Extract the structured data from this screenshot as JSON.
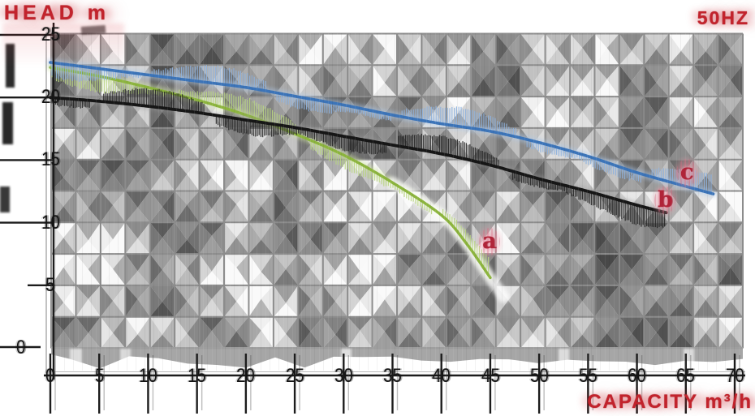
{
  "header": {
    "y_axis_title": "HEAD m",
    "frequency_label": "50HZ"
  },
  "footer": {
    "x_axis_title": "CAPACITY m³/h"
  },
  "colors": {
    "accent_red": "#c2232c",
    "curve_a_green": "#8cb43e",
    "curve_b_black": "#161616",
    "curve_c_blue": "#3c74b8",
    "grid_line": "#8c8c8c",
    "label_red": "#b02438"
  },
  "chart_data": {
    "type": "line",
    "title": "Pump performance curves 50HZ",
    "xlabel": "CAPACITY m³/h",
    "ylabel": "HEAD m",
    "xlim": [
      0,
      70
    ],
    "ylim": [
      0,
      25
    ],
    "x_ticks": [
      0,
      5,
      10,
      15,
      20,
      25,
      30,
      35,
      40,
      45,
      50,
      55,
      60,
      65,
      70
    ],
    "y_ticks": [
      25,
      20,
      15,
      10,
      5,
      0
    ],
    "grid": {
      "on": true,
      "step_x": 2.5,
      "step_y": 2.5
    },
    "legend_position": "none",
    "series": [
      {
        "name": "a",
        "color": "#8cb43e",
        "hatch_color": "#b9d582",
        "glow_color": "#d3e5a6",
        "points": [
          [
            0,
            22.4
          ],
          [
            5,
            21.7
          ],
          [
            10,
            20.8
          ],
          [
            15,
            19.8
          ],
          [
            20,
            18.6
          ],
          [
            25,
            17.1
          ],
          [
            30,
            15.4
          ],
          [
            35,
            13.2
          ],
          [
            40,
            10.6
          ],
          [
            42.5,
            8.4
          ],
          [
            45,
            5.6
          ]
        ]
      },
      {
        "name": "b",
        "color": "#161616",
        "hatch_color": "#222222",
        "glow_color": "#9b9b9b",
        "points": [
          [
            0,
            20.0
          ],
          [
            5,
            19.7
          ],
          [
            10,
            19.3
          ],
          [
            15,
            18.8
          ],
          [
            20,
            18.2
          ],
          [
            25,
            17.6
          ],
          [
            30,
            16.9
          ],
          [
            35,
            16.2
          ],
          [
            40,
            15.5
          ],
          [
            45,
            14.6
          ],
          [
            50,
            13.5
          ],
          [
            55,
            12.5
          ],
          [
            60,
            11.4
          ],
          [
            63,
            10.8
          ]
        ]
      },
      {
        "name": "c",
        "color": "#3c74b8",
        "hatch_color": "#8fb2dd",
        "glow_color": "#aec9e9",
        "points": [
          [
            0,
            22.8
          ],
          [
            5,
            22.3
          ],
          [
            10,
            21.8
          ],
          [
            15,
            21.3
          ],
          [
            20,
            20.8
          ],
          [
            25,
            20.1
          ],
          [
            30,
            19.4
          ],
          [
            35,
            18.6
          ],
          [
            40,
            17.9
          ],
          [
            45,
            17.3
          ],
          [
            50,
            16.4
          ],
          [
            55,
            15.3
          ],
          [
            60,
            14.0
          ],
          [
            65,
            12.9
          ],
          [
            67.8,
            12.3
          ]
        ]
      }
    ],
    "curve_labels": [
      {
        "text": "a",
        "x": 44.9,
        "y": 8.5
      },
      {
        "text": "b",
        "x": 62.9,
        "y": 11.8
      },
      {
        "text": "c",
        "x": 65.1,
        "y": 14.0
      }
    ]
  }
}
